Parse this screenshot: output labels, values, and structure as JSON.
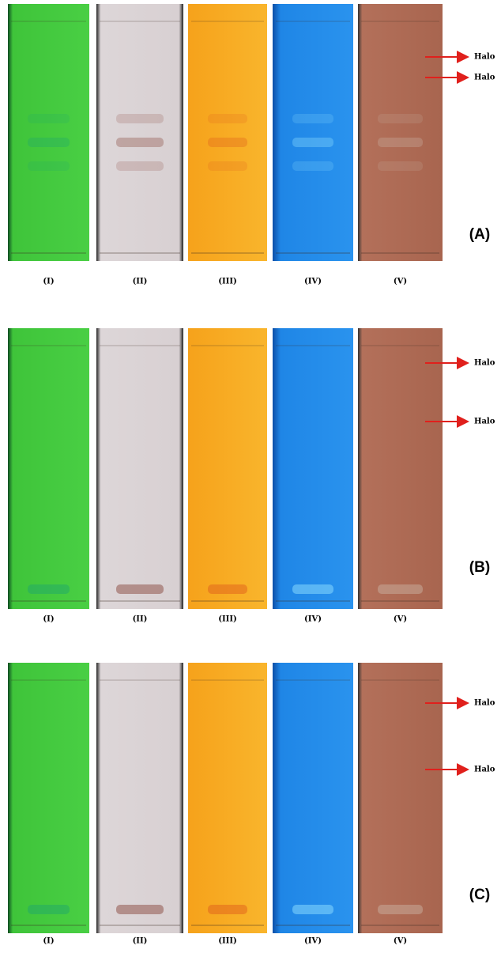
{
  "panels": [
    {
      "label": "(A)",
      "lanes": [
        "(I)",
        "(II)",
        "(III)",
        "(IV)",
        "(V)"
      ],
      "halos": [
        "Halo",
        "Halo"
      ]
    },
    {
      "label": "(B)",
      "lanes": [
        "(I)",
        "(II)",
        "(III)",
        "(IV)",
        "(V)"
      ],
      "halos": [
        "Halo",
        "Halo"
      ]
    },
    {
      "label": "(C)",
      "lanes": [
        "(I)",
        "(II)",
        "(III)",
        "(IV)",
        "(V)"
      ],
      "halos": [
        "Halo",
        "Halo"
      ]
    }
  ]
}
